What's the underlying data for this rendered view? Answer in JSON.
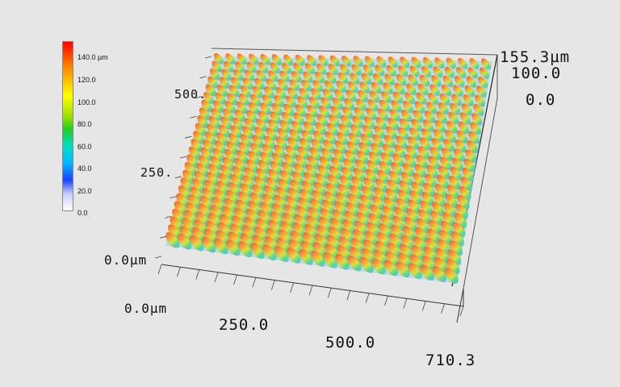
{
  "legend": {
    "ticks": [
      "140.0 µm",
      "120.0",
      "100.0",
      "80.0",
      "60.0",
      "40.0",
      "20.0",
      "0.0"
    ],
    "colors": [
      "#ff0000",
      "#ff7f00",
      "#ffd400",
      "#a0e000",
      "#22cc22",
      "#00e0c0",
      "#00b8ff",
      "#1a40ff",
      "#ffffff"
    ]
  },
  "z_axis": {
    "ticks": [
      "155.3µm",
      "100.0",
      "0.0"
    ]
  },
  "y_axis": {
    "ticks": [
      "500.",
      "250.",
      "0.0µm"
    ]
  },
  "x_axis": {
    "ticks": [
      "0.0µm",
      "250.0",
      "500.0",
      "710.3"
    ]
  },
  "surface": {
    "colors": {
      "top": "#f26a2a",
      "upper": "#f7a23c",
      "mid": "#d9e23a",
      "low": "#57d68f",
      "base": "#3dd6e8"
    }
  }
}
